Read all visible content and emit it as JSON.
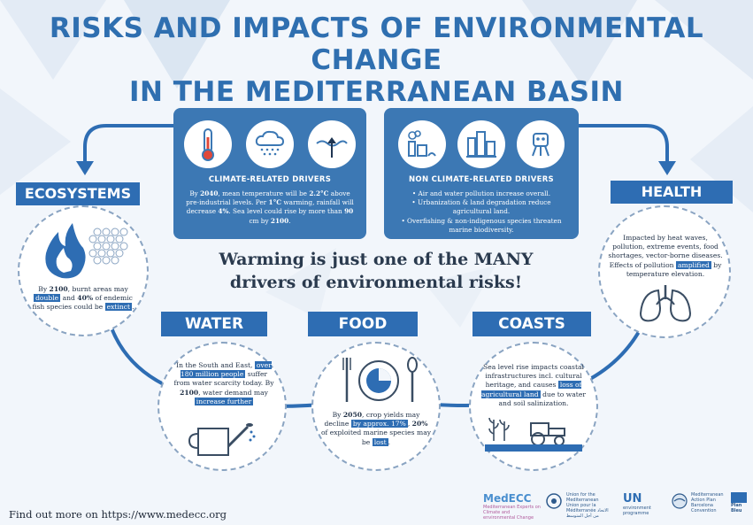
{
  "title": {
    "line1": "RISKS AND IMPACTS OF ENVIRONMENTAL CHANGE",
    "line2": "IN THE MEDITERRANEAN BASIN"
  },
  "climate": {
    "heading": "CLIMATE-RELATED DRIVERS",
    "text1": "By ",
    "year": "2040",
    "text2": ", mean temperature will be ",
    "temp": "2.2°C",
    "text3": " above pre-industrial levels. Per ",
    "warming": "1°C",
    "text4": " warming, rainfall will decrease ",
    "pct": "4%",
    "text5": ". Sea level could rise by  more than ",
    "cm": "90",
    "text6": " cm by ",
    "year2": "2100",
    "text7": "."
  },
  "nonclimate": {
    "heading": "NON CLIMATE-RELATED DRIVERS",
    "bullets": [
      "• Air and water pollution increase overall.",
      "• Urbanization & land degradation reduce agricultural land.",
      "• Overfishing & non-indigenous species threaten marine biodiversity."
    ]
  },
  "headline": {
    "line1": "Warming is just one of the MANY",
    "line2": "drivers of environmental risks!"
  },
  "ecosystems": {
    "label": "ECOSYSTEMS",
    "t1": "By ",
    "year": "2100",
    "t2": ", burnt areas may ",
    "double": "double",
    "t3": " and ",
    "pct": "40%",
    "t4": " of endemic fish species could be ",
    "extinct": "extinct",
    "t5": "."
  },
  "health": {
    "label": "HEALTH",
    "t1": "Impacted by heat waves, pollution, extreme events, food shortages, vector-borne diseases. Effects of pollution ",
    "amplified": "amplified",
    "t2": " by temperature elevation."
  },
  "water": {
    "label": "WATER",
    "t1": "In the South and East, ",
    "people": "over 180 million people",
    "t2": " suffer from water scarcity today. By ",
    "year": "2100",
    "t3": ", water demand may ",
    "increase": "increase further"
  },
  "food": {
    "label": "FOOD",
    "t1": "By ",
    "year": "2050",
    "t2": ", crop yields may decline ",
    "approx": "by approx. 17%",
    "t3": ", ",
    "pct": "20%",
    "t4": " of exploited marine species may be ",
    "lost": "lost",
    "t5": "."
  },
  "coasts": {
    "label": "COASTS",
    "t1": "Sea level rise impacts coastal infrastructures incl. cultural heritage, and causes ",
    "loss": "loss of agricultural land",
    "t2": " due to water and soil salinization."
  },
  "footer": {
    "link": "Find out more on https://www.medecc.org"
  },
  "logos": {
    "medecc": "MedECC",
    "medecc_sub": "Mediterranean Experts on Climate and environmental Change",
    "ufm": "Union for the Mediterranean Union pour la Méditerranée الاتحاد من أجل المتوسط",
    "unep": "UN",
    "unep_sub": "environment programme",
    "map": "Mediterranean Action Plan Barcelona Convention",
    "planbleu": "Plan Bleu"
  },
  "colors": {
    "primary": "#2e6db3",
    "title": "#2f6fb0",
    "panel": "#3c78b4",
    "background": "#f2f6fb"
  }
}
